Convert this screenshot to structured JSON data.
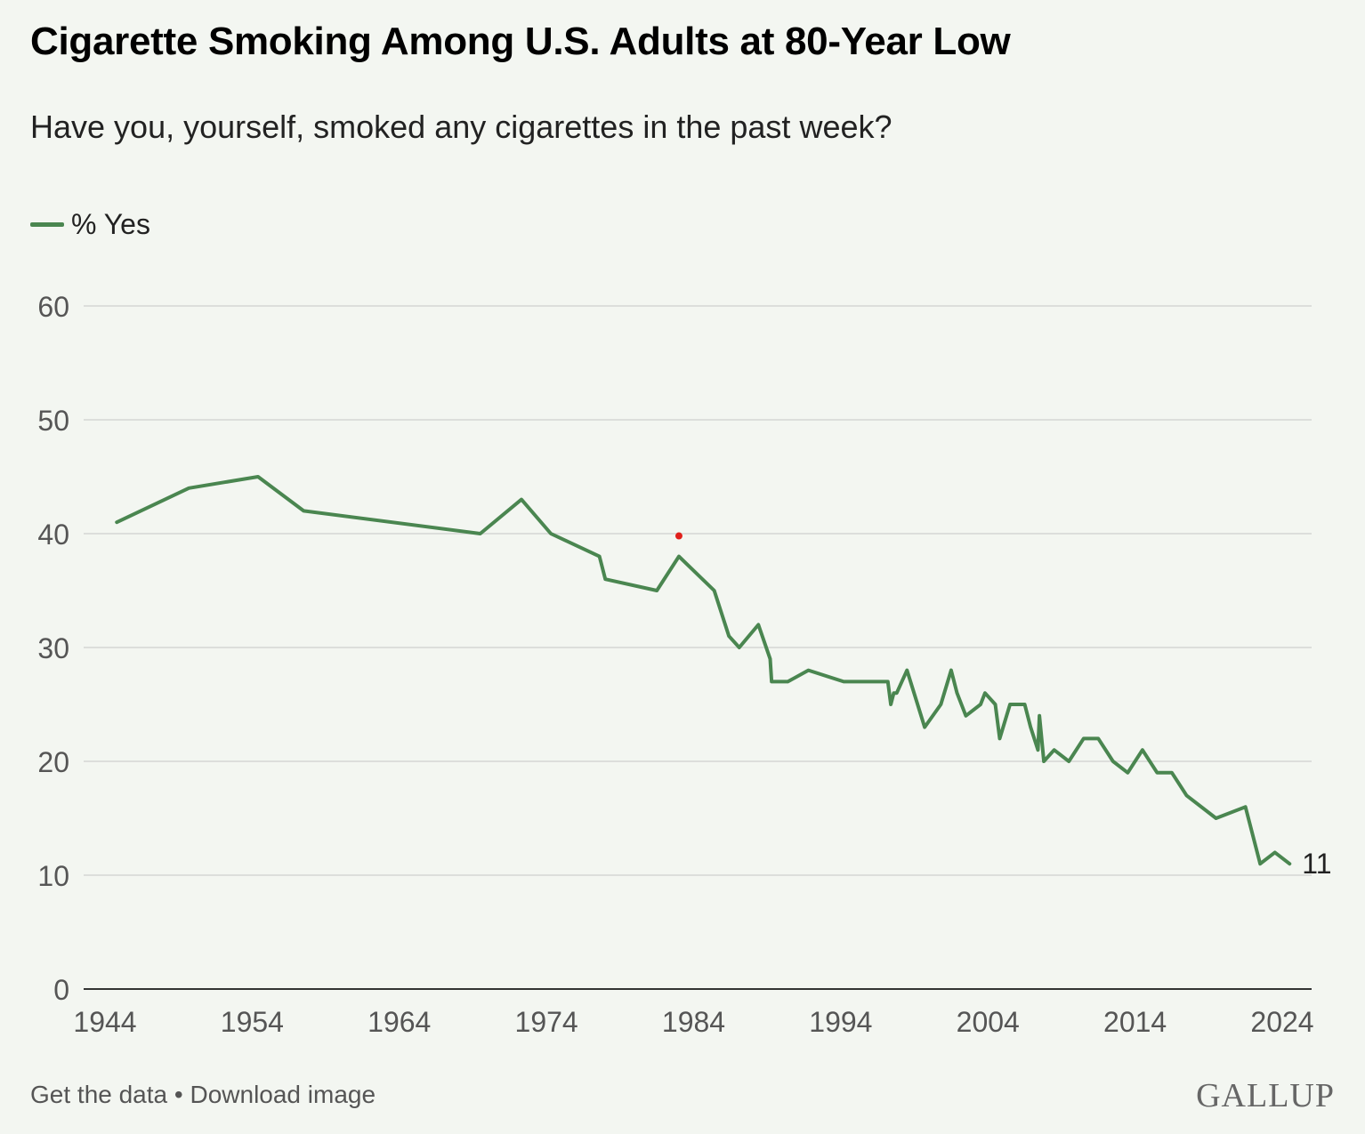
{
  "chart_data": {
    "type": "line",
    "title": "Cigarette Smoking Among U.S. Adults at 80-Year Low",
    "subtitle": "Have you, yourself, smoked any cigarettes in the past week?",
    "xlabel": "",
    "ylabel": "",
    "xlim": [
      1944,
      2024
    ],
    "ylim": [
      0,
      60
    ],
    "grid": true,
    "legend_position": "top-left",
    "x_ticks": [
      "1944",
      "1954",
      "1964",
      "1974",
      "1984",
      "1994",
      "2004",
      "2014",
      "2024"
    ],
    "y_ticks": [
      "0",
      "10",
      "20",
      "30",
      "40",
      "50",
      "60"
    ],
    "series": [
      {
        "name": "% Yes",
        "color": "#4a8650",
        "x": [
          1944.8,
          1949.7,
          1954.4,
          1957.5,
          1969.5,
          1972.3,
          1974.3,
          1977.6,
          1978.0,
          1981.5,
          1983.0,
          1985.4,
          1986.4,
          1987.1,
          1988.4,
          1989.2,
          1989.3,
          1990.4,
          1991.8,
          1994.2,
          1997.2,
          1997.4,
          1997.6,
          1997.8,
          1998.5,
          1999.7,
          2000.8,
          2001.5,
          2001.9,
          2002.5,
          2003.5,
          2003.8,
          2004.5,
          2004.8,
          2005.5,
          2006.5,
          2006.9,
          2007.4,
          2007.5,
          2007.8,
          2008.5,
          2009.5,
          2010.5,
          2011.5,
          2012.5,
          2013.5,
          2014.5,
          2015.5,
          2016.5,
          2017.5,
          2019.5,
          2021.5,
          2022.5,
          2023.5,
          2024.5
        ],
        "values": [
          41,
          44,
          45,
          42,
          40,
          43,
          40,
          38,
          36,
          35,
          38,
          35,
          31,
          30,
          32,
          29,
          27,
          27,
          28,
          27,
          27,
          25,
          26,
          26,
          28,
          23,
          25,
          28,
          26,
          24,
          25,
          26,
          25,
          22,
          25,
          25,
          23,
          21,
          24,
          20,
          21,
          20,
          22,
          22,
          20,
          19,
          21,
          19,
          19,
          17,
          15,
          16,
          11,
          12,
          11
        ]
      }
    ],
    "end_label": "11",
    "marker": {
      "x": 1983,
      "y": 39.8,
      "color": "#e0201b"
    }
  },
  "legend": {
    "label": "% Yes"
  },
  "footer": {
    "get_data": "Get the data",
    "separator": " • ",
    "download": "Download image"
  },
  "logo": "GALLUP"
}
